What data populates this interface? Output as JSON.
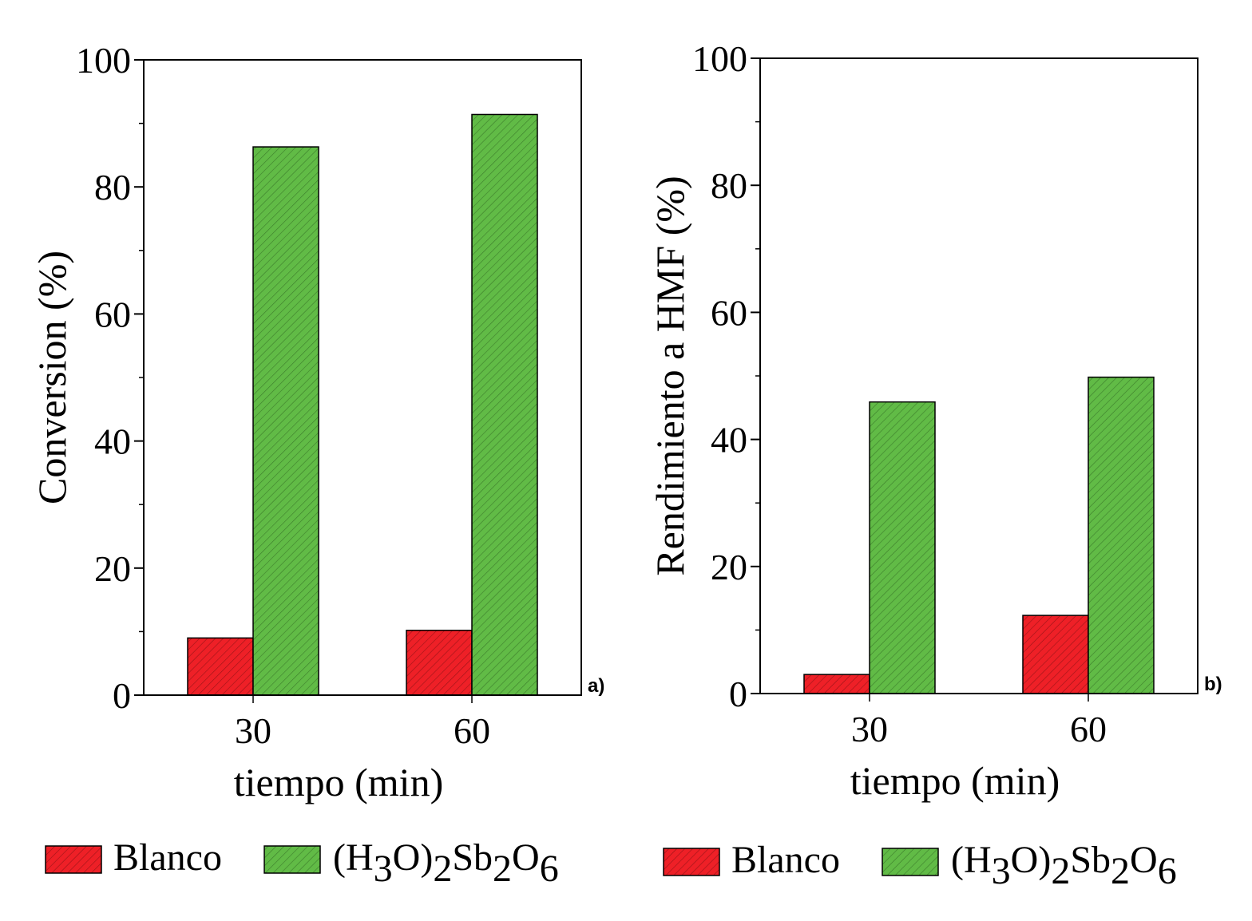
{
  "chart_data": [
    {
      "type": "bar",
      "panel_label": "a)",
      "categories": [
        "30",
        "60"
      ],
      "xlabel": "tiempo (min)",
      "ylabel": "Conversion (%)",
      "ylim": [
        0,
        100
      ],
      "yticks": [
        "0",
        "20",
        "40",
        "60",
        "80",
        "100"
      ],
      "grid": false,
      "legend_placement": "bottom",
      "series": [
        {
          "name": "Blanco",
          "color": "#ee2027",
          "values": [
            9,
            10.2
          ]
        },
        {
          "name": "(H3O)2Sb2O6",
          "color": "#61bb46",
          "values": [
            86.3,
            91.4
          ]
        }
      ]
    },
    {
      "type": "bar",
      "panel_label": "b)",
      "categories": [
        "30",
        "60"
      ],
      "xlabel": "tiempo (min)",
      "ylabel": "Rendimiento a HMF (%)",
      "ylim": [
        0,
        100
      ],
      "yticks": [
        "0",
        "20",
        "40",
        "60",
        "80",
        "100"
      ],
      "grid": false,
      "legend_placement": "bottom",
      "series": [
        {
          "name": "Blanco",
          "color": "#ee2027",
          "values": [
            3,
            12.3
          ]
        },
        {
          "name": "(H3O)2Sb2O6",
          "color": "#61bb46",
          "values": [
            45.9,
            49.8
          ]
        }
      ]
    }
  ]
}
